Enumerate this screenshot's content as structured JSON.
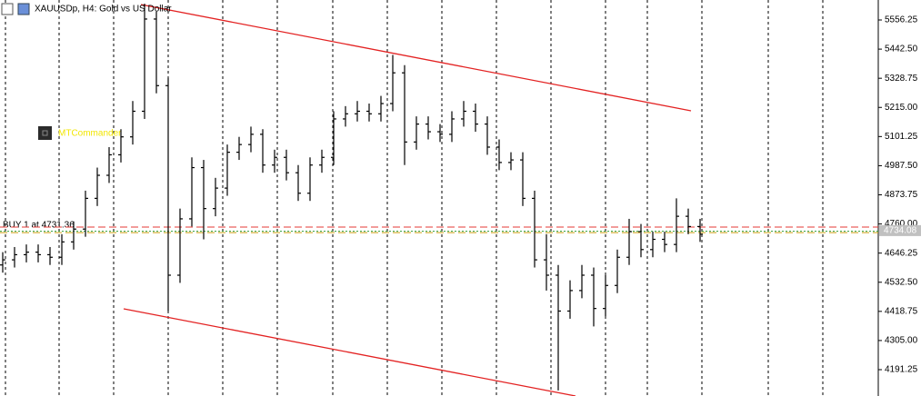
{
  "chart_data": {
    "type": "ohlc",
    "title": "XAUUSDp, H4:  Gold vs US Dollar",
    "indicator_label": "MTCommander",
    "order_label": "BUY 1 at 4731.36",
    "bar_color": "#000000",
    "ylim": [
      4088.4,
      5634.3
    ],
    "yticks": [
      5556.25,
      {
        "value": 5442.5,
        "label": "5442.50"
      },
      5328.75,
      {
        "value": 5215,
        "label": "5215.00"
      },
      5101.25,
      {
        "value": 4987.5,
        "label": "4987.50"
      },
      4873.75,
      {
        "value": 4760,
        "label": "4760.00"
      },
      4646.25,
      {
        "value": 4532.5,
        "label": "4532.50"
      },
      4418.75,
      {
        "value": 4305,
        "label": "4305.00"
      },
      4191.25
    ],
    "open": [
      4600,
      4620,
      4640,
      4650,
      4640,
      4630,
      4690,
      4740,
      4860,
      4950,
      5030,
      5100,
      5200,
      5560,
      5300,
      4560,
      4780,
      4980,
      4820,
      4900,
      5040,
      5070,
      5110,
      4990,
      5020,
      4960,
      4880,
      4990,
      5020,
      5170,
      5190,
      5200,
      5190,
      5230,
      5350,
      5080,
      5150,
      5120,
      5110,
      5170,
      5200,
      5150,
      5060,
      5000,
      5010,
      4860,
      4620,
      4560,
      4420,
      4500,
      4560,
      4430,
      4520,
      4630,
      4730,
      4660,
      4700,
      4680,
      4790,
      4750
    ],
    "high": [
      4650,
      4670,
      4680,
      4680,
      4670,
      4720,
      4770,
      4890,
      4980,
      5060,
      5130,
      5240,
      5620,
      5590,
      5330,
      4820,
      5020,
      5010,
      4940,
      5070,
      5100,
      5140,
      5130,
      5050,
      5050,
      4990,
      5020,
      5050,
      5200,
      5220,
      5240,
      5230,
      5260,
      5420,
      5380,
      5180,
      5180,
      5150,
      5200,
      5240,
      5230,
      5180,
      5090,
      5040,
      5040,
      4890,
      4720,
      4600,
      4540,
      4600,
      4590,
      4560,
      4660,
      4780,
      4760,
      4730,
      4730,
      4860,
      4820,
      4780
    ],
    "low": [
      4570,
      4590,
      4610,
      4610,
      4600,
      4600,
      4660,
      4710,
      4830,
      4920,
      5000,
      5070,
      5170,
      5270,
      4420,
      4530,
      4750,
      4700,
      4790,
      4870,
      5010,
      5040,
      4960,
      4960,
      4930,
      4850,
      4850,
      4960,
      4990,
      5140,
      5160,
      5160,
      5160,
      5200,
      4990,
      5050,
      5090,
      5080,
      5080,
      5140,
      5120,
      5030,
      4970,
      4970,
      4830,
      4590,
      4500,
      4110,
      4390,
      4470,
      4360,
      4400,
      4490,
      4600,
      4630,
      4630,
      4650,
      4650,
      4720,
      4690
    ],
    "close": [
      4620,
      4640,
      4650,
      4640,
      4630,
      4690,
      4740,
      4860,
      4950,
      5030,
      5100,
      5200,
      5560,
      5300,
      4560,
      4780,
      4980,
      4820,
      4900,
      5040,
      5070,
      5110,
      4990,
      5020,
      4960,
      4880,
      4990,
      5020,
      5170,
      5190,
      5200,
      5190,
      5230,
      5350,
      5080,
      5150,
      5120,
      5110,
      5170,
      5200,
      5150,
      5060,
      5000,
      5010,
      4860,
      4620,
      4560,
      4420,
      4500,
      4560,
      4430,
      4520,
      4630,
      4730,
      4660,
      4700,
      4680,
      4790,
      4750,
      4720
    ],
    "bid_price": 4734.08,
    "price_lines": [
      {
        "value": 4748,
        "color": "#e53935",
        "style": "dashed"
      },
      {
        "value": 4731.36,
        "color": "#2e9d3a",
        "style": "dotted"
      },
      {
        "value": 4726,
        "color": "#d4a017",
        "style": "dashed"
      }
    ],
    "grid": true
  }
}
